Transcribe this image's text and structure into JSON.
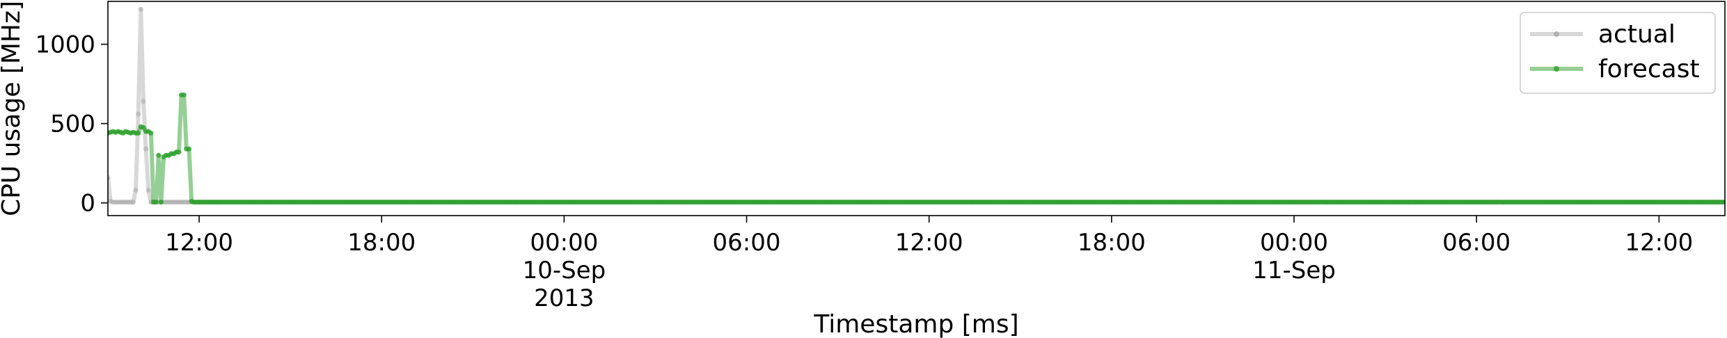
{
  "chart_data": {
    "type": "line",
    "xlabel": "Timestamp [ms]",
    "ylabel": "CPU usage [MHz]",
    "xlim": [
      "2013-09-09T09:00",
      "2013-09-11T14:10"
    ],
    "ylim": [
      -80,
      1270
    ],
    "yticks": [
      0,
      500,
      1000
    ],
    "xticks": [
      {
        "t": "2013-09-09T12:00",
        "lines": [
          "12:00"
        ]
      },
      {
        "t": "2013-09-09T18:00",
        "lines": [
          "18:00"
        ]
      },
      {
        "t": "2013-09-10T00:00",
        "lines": [
          "00:00",
          "10-Sep",
          "2013"
        ]
      },
      {
        "t": "2013-09-10T06:00",
        "lines": [
          "06:00"
        ]
      },
      {
        "t": "2013-09-10T12:00",
        "lines": [
          "12:00"
        ]
      },
      {
        "t": "2013-09-10T18:00",
        "lines": [
          "18:00"
        ]
      },
      {
        "t": "2013-09-11T00:00",
        "lines": [
          "00:00",
          "11-Sep"
        ]
      },
      {
        "t": "2013-09-11T06:00",
        "lines": [
          "06:00"
        ]
      },
      {
        "t": "2013-09-11T12:00",
        "lines": [
          "12:00"
        ]
      }
    ],
    "legend_position": "top-right",
    "grid": false,
    "sampling_interval_minutes": 5,
    "series": [
      {
        "name": "actual",
        "color": "#a9a9a9",
        "points": [
          [
            "2013-09-09T09:00",
            160
          ],
          [
            "2013-09-09T09:05",
            10
          ],
          [
            "2013-09-09T09:10",
            5
          ],
          [
            "2013-09-09T09:15",
            5
          ],
          [
            "2013-09-09T09:20",
            5
          ],
          [
            "2013-09-09T09:25",
            5
          ],
          [
            "2013-09-09T09:30",
            5
          ],
          [
            "2013-09-09T09:35",
            5
          ],
          [
            "2013-09-09T09:40",
            5
          ],
          [
            "2013-09-09T09:45",
            5
          ],
          [
            "2013-09-09T09:50",
            5
          ],
          [
            "2013-09-09T09:55",
            80
          ],
          [
            "2013-09-09T10:00",
            560
          ],
          [
            "2013-09-09T10:05",
            1220
          ],
          [
            "2013-09-09T10:10",
            640
          ],
          [
            "2013-09-09T10:15",
            340
          ],
          [
            "2013-09-09T10:20",
            80
          ],
          [
            "2013-09-09T10:25",
            5
          ],
          [
            "2013-09-09T10:30",
            5
          ],
          [
            "2013-09-09T10:35",
            5
          ],
          [
            "2013-09-09T10:40",
            5
          ],
          [
            "2013-09-09T10:45",
            5
          ],
          [
            "2013-09-09T10:50",
            5
          ],
          [
            "2013-09-09T10:55",
            5
          ],
          [
            "2013-09-09T11:00",
            5
          ],
          [
            "2013-09-09T11:05",
            5
          ],
          [
            "2013-09-09T11:10",
            5
          ],
          [
            "2013-09-09T11:15",
            5
          ],
          [
            "2013-09-09T11:20",
            5
          ],
          [
            "2013-09-09T11:25",
            5
          ],
          [
            "2013-09-09T11:30",
            5
          ],
          [
            "2013-09-09T11:35",
            5
          ],
          [
            "2013-09-09T11:40",
            5
          ],
          [
            "2013-09-09T11:45",
            5
          ],
          [
            "2013-09-09T11:50",
            5
          ],
          [
            "2013-09-09T11:55",
            5
          ],
          [
            "2013-09-09T12:00",
            5
          ],
          [
            "2013-09-11T14:10",
            5
          ]
        ]
      },
      {
        "name": "forecast",
        "color": "#2ca02c",
        "points": [
          [
            "2013-09-09T09:00",
            440
          ],
          [
            "2013-09-09T09:05",
            445
          ],
          [
            "2013-09-09T09:10",
            450
          ],
          [
            "2013-09-09T09:15",
            445
          ],
          [
            "2013-09-09T09:20",
            450
          ],
          [
            "2013-09-09T09:25",
            445
          ],
          [
            "2013-09-09T09:30",
            440
          ],
          [
            "2013-09-09T09:35",
            450
          ],
          [
            "2013-09-09T09:40",
            445
          ],
          [
            "2013-09-09T09:45",
            440
          ],
          [
            "2013-09-09T09:50",
            445
          ],
          [
            "2013-09-09T09:55",
            440
          ],
          [
            "2013-09-09T10:00",
            440
          ],
          [
            "2013-09-09T10:05",
            480
          ],
          [
            "2013-09-09T10:10",
            475
          ],
          [
            "2013-09-09T10:15",
            450
          ],
          [
            "2013-09-09T10:20",
            450
          ],
          [
            "2013-09-09T10:25",
            440
          ],
          [
            "2013-09-09T10:30",
            5
          ],
          [
            "2013-09-09T10:35",
            5
          ],
          [
            "2013-09-09T10:40",
            300
          ],
          [
            "2013-09-09T10:45",
            5
          ],
          [
            "2013-09-09T10:50",
            290
          ],
          [
            "2013-09-09T10:55",
            300
          ],
          [
            "2013-09-09T11:00",
            300
          ],
          [
            "2013-09-09T11:05",
            310
          ],
          [
            "2013-09-09T11:10",
            310
          ],
          [
            "2013-09-09T11:15",
            320
          ],
          [
            "2013-09-09T11:20",
            320
          ],
          [
            "2013-09-09T11:25",
            680
          ],
          [
            "2013-09-09T11:30",
            680
          ],
          [
            "2013-09-09T11:35",
            340
          ],
          [
            "2013-09-09T11:40",
            340
          ],
          [
            "2013-09-09T11:45",
            10
          ],
          [
            "2013-09-09T11:50",
            5
          ],
          [
            "2013-09-09T11:55",
            5
          ],
          [
            "2013-09-09T12:00",
            5
          ],
          [
            "2013-09-11T14:10",
            5
          ]
        ]
      }
    ]
  }
}
